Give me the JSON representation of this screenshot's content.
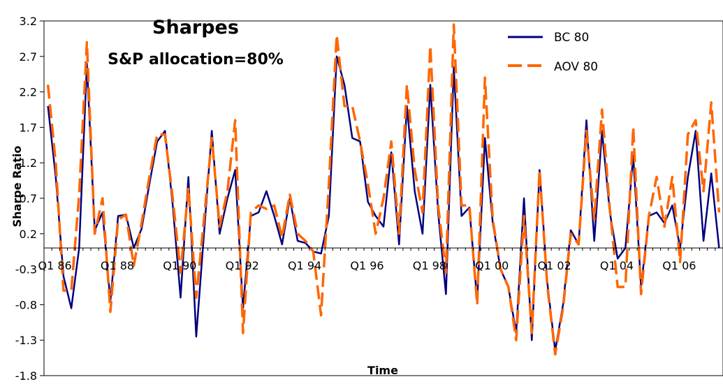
{
  "chart_data": {
    "type": "line",
    "title": "Sharpes",
    "subtitle": "S&P allocation=80%",
    "xlabel": "Time",
    "ylabel": "Sharpe Ratio",
    "ylim": [
      -1.8,
      3.2
    ],
    "yticks": [
      "3.2",
      "2.7",
      "2.2",
      "1.7",
      "1.2",
      "0.7",
      "0.2",
      "-0.3",
      "-0.8",
      "-1.3",
      "-1.8"
    ],
    "yticks_values": [
      3.2,
      2.7,
      2.2,
      1.7,
      1.2,
      0.7,
      0.2,
      -0.3,
      -0.8,
      -1.3,
      -1.8
    ],
    "x_tick_labels": [
      "Q1 86",
      "Q1 88",
      "Q1 90",
      "Q1 92",
      "Q1 94",
      "Q1 96",
      "Q1 98",
      "Q1 00",
      "Q1 02",
      "Q1 04",
      "Q1 06"
    ],
    "legend_position": "top-right",
    "colors": {
      "bc": "#000080",
      "aov": "#FF6600"
    },
    "series": [
      {
        "name": "BC 80",
        "style": "solid",
        "values": [
          2.0,
          1.0,
          -0.4,
          -0.85,
          0.0,
          2.6,
          0.25,
          0.5,
          -0.75,
          0.45,
          0.47,
          0.0,
          0.27,
          0.9,
          1.5,
          1.65,
          0.6,
          -0.7,
          1.0,
          -1.25,
          0.2,
          1.65,
          0.2,
          0.7,
          1.1,
          -0.85,
          0.45,
          0.5,
          0.8,
          0.45,
          0.05,
          0.7,
          0.1,
          0.07,
          -0.05,
          -0.08,
          0.45,
          2.7,
          2.3,
          1.55,
          1.5,
          0.65,
          0.45,
          0.3,
          1.35,
          0.05,
          2.0,
          0.8,
          0.2,
          2.3,
          0.5,
          -0.65,
          2.55,
          0.45,
          0.57,
          -0.75,
          1.55,
          0.35,
          -0.3,
          -0.55,
          -1.2,
          0.7,
          -1.3,
          1.1,
          -0.5,
          -1.45,
          -0.8,
          0.25,
          0.05,
          1.8,
          0.1,
          1.65,
          0.5,
          -0.15,
          0.0,
          1.3,
          -0.55,
          0.45,
          0.5,
          0.35,
          0.6,
          0.0,
          1.0,
          1.65,
          0.1,
          1.05,
          0.0
        ]
      },
      {
        "name": "AOV 80",
        "style": "dashed",
        "values": [
          2.3,
          1.2,
          -0.6,
          -0.6,
          0.75,
          2.9,
          0.2,
          0.7,
          -0.9,
          0.4,
          0.47,
          -0.25,
          0.35,
          1.0,
          1.6,
          1.6,
          0.7,
          -0.35,
          0.85,
          -0.7,
          0.4,
          1.55,
          0.3,
          0.8,
          1.8,
          -1.2,
          0.5,
          0.6,
          0.55,
          0.6,
          0.15,
          0.75,
          0.2,
          0.1,
          -0.05,
          -0.95,
          0.9,
          3.0,
          2.0,
          2.0,
          1.5,
          0.9,
          0.2,
          0.7,
          1.5,
          0.2,
          2.3,
          1.1,
          0.5,
          2.85,
          0.6,
          -0.35,
          3.15,
          0.6,
          0.6,
          -0.8,
          2.4,
          0.4,
          -0.3,
          -0.55,
          -1.3,
          0.45,
          -1.2,
          1.1,
          -0.55,
          -1.5,
          -0.85,
          0.2,
          0.05,
          1.65,
          0.4,
          1.95,
          0.55,
          -0.55,
          -0.55,
          1.7,
          -0.65,
          0.45,
          1.0,
          0.3,
          1.0,
          -0.2,
          1.6,
          1.8,
          0.8,
          2.05,
          0.5
        ]
      }
    ]
  }
}
